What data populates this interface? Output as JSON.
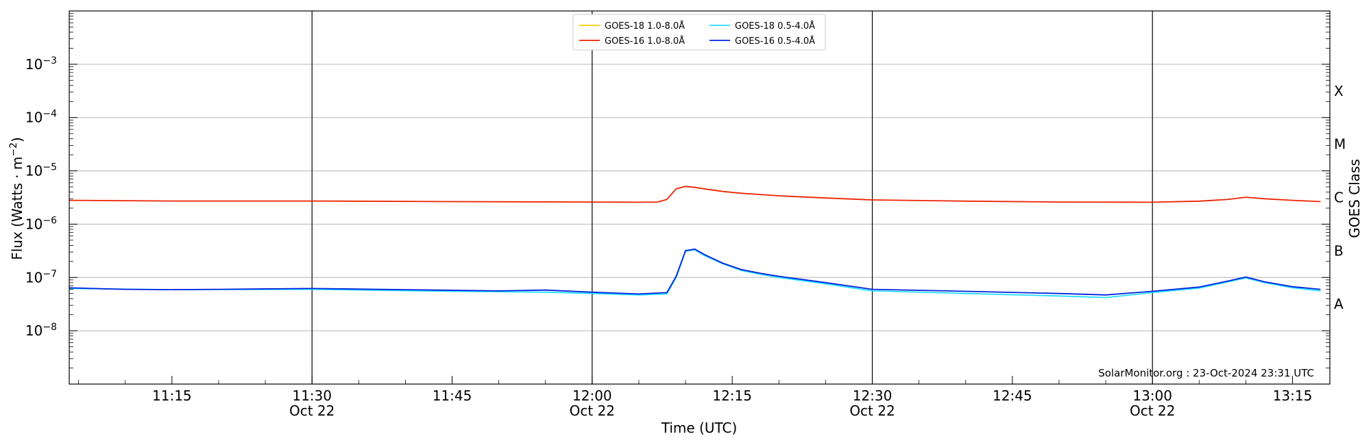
{
  "chart_data": {
    "type": "line",
    "title": "",
    "xlabel": "Time (UTC)",
    "ylabel": "Flux (Watts · m^-2)",
    "ylabel_base": "Flux (Watts · m",
    "ylabel_exp": "−2",
    "ylabel_close": ")",
    "right_label": "GOES Class",
    "yscale": "log",
    "ylim": [
      1e-09,
      0.01
    ],
    "xlim": [
      "2024-10-22 11:04",
      "2024-10-22 13:19"
    ],
    "grid": "horizontal at decades",
    "legend_position": "top-center",
    "credit": "SolarMonitor.org : 23-Oct-2024 23:31 UTC",
    "y_ticks": [
      {
        "value": 1e-08,
        "base": "10",
        "exp": "−8"
      },
      {
        "value": 1e-07,
        "base": "10",
        "exp": "−7"
      },
      {
        "value": 1e-06,
        "base": "10",
        "exp": "−6"
      },
      {
        "value": 1e-05,
        "base": "10",
        "exp": "−5"
      },
      {
        "value": 0.0001,
        "base": "10",
        "exp": "−4"
      },
      {
        "value": 0.001,
        "base": "10",
        "exp": "−3"
      }
    ],
    "classes": [
      {
        "label": "A",
        "value": 1e-08
      },
      {
        "label": "B",
        "value": 1e-07
      },
      {
        "label": "C",
        "value": 1e-06
      },
      {
        "label": "M",
        "value": 1e-05
      },
      {
        "label": "X",
        "value": 0.0001
      }
    ],
    "x_ticks": [
      {
        "time": "11:15",
        "date": ""
      },
      {
        "time": "11:30",
        "date": "Oct 22"
      },
      {
        "time": "11:45",
        "date": ""
      },
      {
        "time": "12:00",
        "date": "Oct 22"
      },
      {
        "time": "12:15",
        "date": ""
      },
      {
        "time": "12:30",
        "date": "Oct 22"
      },
      {
        "time": "12:45",
        "date": ""
      },
      {
        "time": "13:00",
        "date": "Oct 22"
      },
      {
        "time": "13:15",
        "date": ""
      }
    ],
    "vlines": [
      "11:30",
      "12:00",
      "12:30",
      "13:00"
    ],
    "series": [
      {
        "name": "GOES-18 1.0-8.0Å",
        "color": "#ffcc00",
        "points": []
      },
      {
        "name": "GOES-16 1.0-8.0Å",
        "color": "#ee2200",
        "points": [
          [
            "11:04",
            2.8e-06
          ],
          [
            "11:15",
            2.72e-06
          ],
          [
            "11:30",
            2.72e-06
          ],
          [
            "11:45",
            2.65e-06
          ],
          [
            "12:00",
            2.6e-06
          ],
          [
            "12:05",
            2.58e-06
          ],
          [
            "12:07",
            2.6e-06
          ],
          [
            "12:08",
            2.9e-06
          ],
          [
            "12:09",
            4.6e-06
          ],
          [
            "12:10",
            5.1e-06
          ],
          [
            "12:11",
            4.9e-06
          ],
          [
            "12:12",
            4.6e-06
          ],
          [
            "12:14",
            4.1e-06
          ],
          [
            "12:16",
            3.8e-06
          ],
          [
            "12:18",
            3.6e-06
          ],
          [
            "12:20",
            3.4e-06
          ],
          [
            "12:25",
            3.1e-06
          ],
          [
            "12:30",
            2.85e-06
          ],
          [
            "12:40",
            2.7e-06
          ],
          [
            "12:50",
            2.6e-06
          ],
          [
            "13:00",
            2.58e-06
          ],
          [
            "13:05",
            2.7e-06
          ],
          [
            "13:08",
            2.9e-06
          ],
          [
            "13:10",
            3.2e-06
          ],
          [
            "13:12",
            3e-06
          ],
          [
            "13:15",
            2.8e-06
          ],
          [
            "13:18",
            2.65e-06
          ]
        ]
      },
      {
        "name": "GOES-18 0.5-4.0Å",
        "color": "#22ddff",
        "points": [
          [
            "11:04",
            6.2e-08
          ],
          [
            "11:15",
            5.9e-08
          ],
          [
            "11:30",
            6e-08
          ],
          [
            "11:45",
            5.5e-08
          ],
          [
            "11:55",
            5.3e-08
          ],
          [
            "12:00",
            5e-08
          ],
          [
            "12:05",
            4.7e-08
          ],
          [
            "12:08",
            4.9e-08
          ],
          [
            "12:09",
            1e-07
          ],
          [
            "12:10",
            3.1e-07
          ],
          [
            "12:11",
            3.3e-07
          ],
          [
            "12:12",
            2.6e-07
          ],
          [
            "12:14",
            1.8e-07
          ],
          [
            "12:16",
            1.35e-07
          ],
          [
            "12:18",
            1.15e-07
          ],
          [
            "12:20",
            1e-07
          ],
          [
            "12:25",
            7.6e-08
          ],
          [
            "12:30",
            5.6e-08
          ],
          [
            "12:40",
            5e-08
          ],
          [
            "12:50",
            4.5e-08
          ],
          [
            "12:55",
            4.2e-08
          ],
          [
            "13:00",
            5.2e-08
          ],
          [
            "13:05",
            6.3e-08
          ],
          [
            "13:08",
            8.2e-08
          ],
          [
            "13:10",
            9.8e-08
          ],
          [
            "13:12",
            8e-08
          ],
          [
            "13:15",
            6.4e-08
          ],
          [
            "13:18",
            5.6e-08
          ]
        ]
      },
      {
        "name": "GOES-16 0.5-4.0Å",
        "color": "#0022dd",
        "points": [
          [
            "11:04",
            6.4e-08
          ],
          [
            "11:10",
            6e-08
          ],
          [
            "11:15",
            5.9e-08
          ],
          [
            "11:20",
            6e-08
          ],
          [
            "11:30",
            6.2e-08
          ],
          [
            "11:40",
            5.9e-08
          ],
          [
            "11:50",
            5.6e-08
          ],
          [
            "11:55",
            5.8e-08
          ],
          [
            "12:00",
            5.3e-08
          ],
          [
            "12:05",
            4.9e-08
          ],
          [
            "12:08",
            5.2e-08
          ],
          [
            "12:09",
            1.05e-07
          ],
          [
            "12:10",
            3.2e-07
          ],
          [
            "12:11",
            3.4e-07
          ],
          [
            "12:12",
            2.7e-07
          ],
          [
            "12:14",
            1.85e-07
          ],
          [
            "12:16",
            1.4e-07
          ],
          [
            "12:18",
            1.2e-07
          ],
          [
            "12:20",
            1.05e-07
          ],
          [
            "12:25",
            8e-08
          ],
          [
            "12:30",
            6e-08
          ],
          [
            "12:40",
            5.5e-08
          ],
          [
            "12:50",
            5e-08
          ],
          [
            "12:55",
            4.7e-08
          ],
          [
            "13:00",
            5.5e-08
          ],
          [
            "13:05",
            6.6e-08
          ],
          [
            "13:08",
            8.5e-08
          ],
          [
            "13:10",
            1.02e-07
          ],
          [
            "13:12",
            8.3e-08
          ],
          [
            "13:15",
            6.7e-08
          ],
          [
            "13:18",
            6e-08
          ]
        ]
      }
    ]
  }
}
